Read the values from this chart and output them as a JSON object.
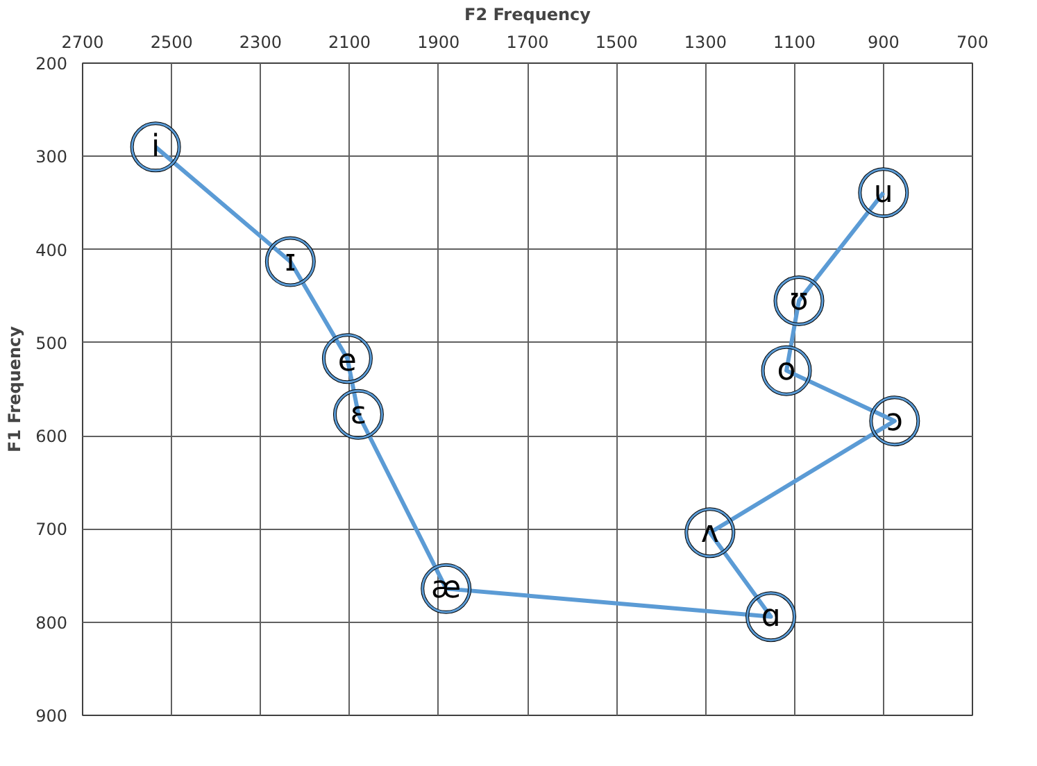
{
  "chart_data": {
    "type": "line",
    "xlabel": "F2 Frequency",
    "ylabel": "F1 Frequency",
    "x": [
      2536,
      2233,
      2105,
      2080,
      1883,
      1153,
      1290,
      875,
      1118,
      1090,
      900
    ],
    "series": [
      {
        "color": "#5b9bd5",
        "values": [
          290,
          413,
          517,
          577,
          764,
          794,
          704,
          584,
          530,
          455,
          339
        ]
      }
    ],
    "annotations": [
      {
        "text": "i",
        "x": 2536,
        "y": 290
      },
      {
        "text": "ɪ",
        "x": 2233,
        "y": 413
      },
      {
        "text": "e",
        "x": 2105,
        "y": 517
      },
      {
        "text": "ɛ",
        "x": 2080,
        "y": 577
      },
      {
        "text": "æ",
        "x": 1883,
        "y": 764
      },
      {
        "text": "ɑ",
        "x": 1153,
        "y": 794
      },
      {
        "text": "ʌ",
        "x": 1290,
        "y": 704
      },
      {
        "text": "ɔ",
        "x": 875,
        "y": 584
      },
      {
        "text": "o",
        "x": 1118,
        "y": 530
      },
      {
        "text": "ʊ",
        "x": 1090,
        "y": 455
      },
      {
        "text": "u",
        "x": 900,
        "y": 339
      }
    ],
    "xlim": [
      2700,
      700
    ],
    "xticks": [
      2700,
      2500,
      2300,
      2100,
      1900,
      1700,
      1500,
      1300,
      1100,
      900,
      700
    ],
    "ylim": [
      900,
      200
    ],
    "yticks": [
      200,
      300,
      400,
      500,
      600,
      700,
      800,
      900
    ],
    "grid": true,
    "marker": "circle",
    "line_style": "solid"
  }
}
